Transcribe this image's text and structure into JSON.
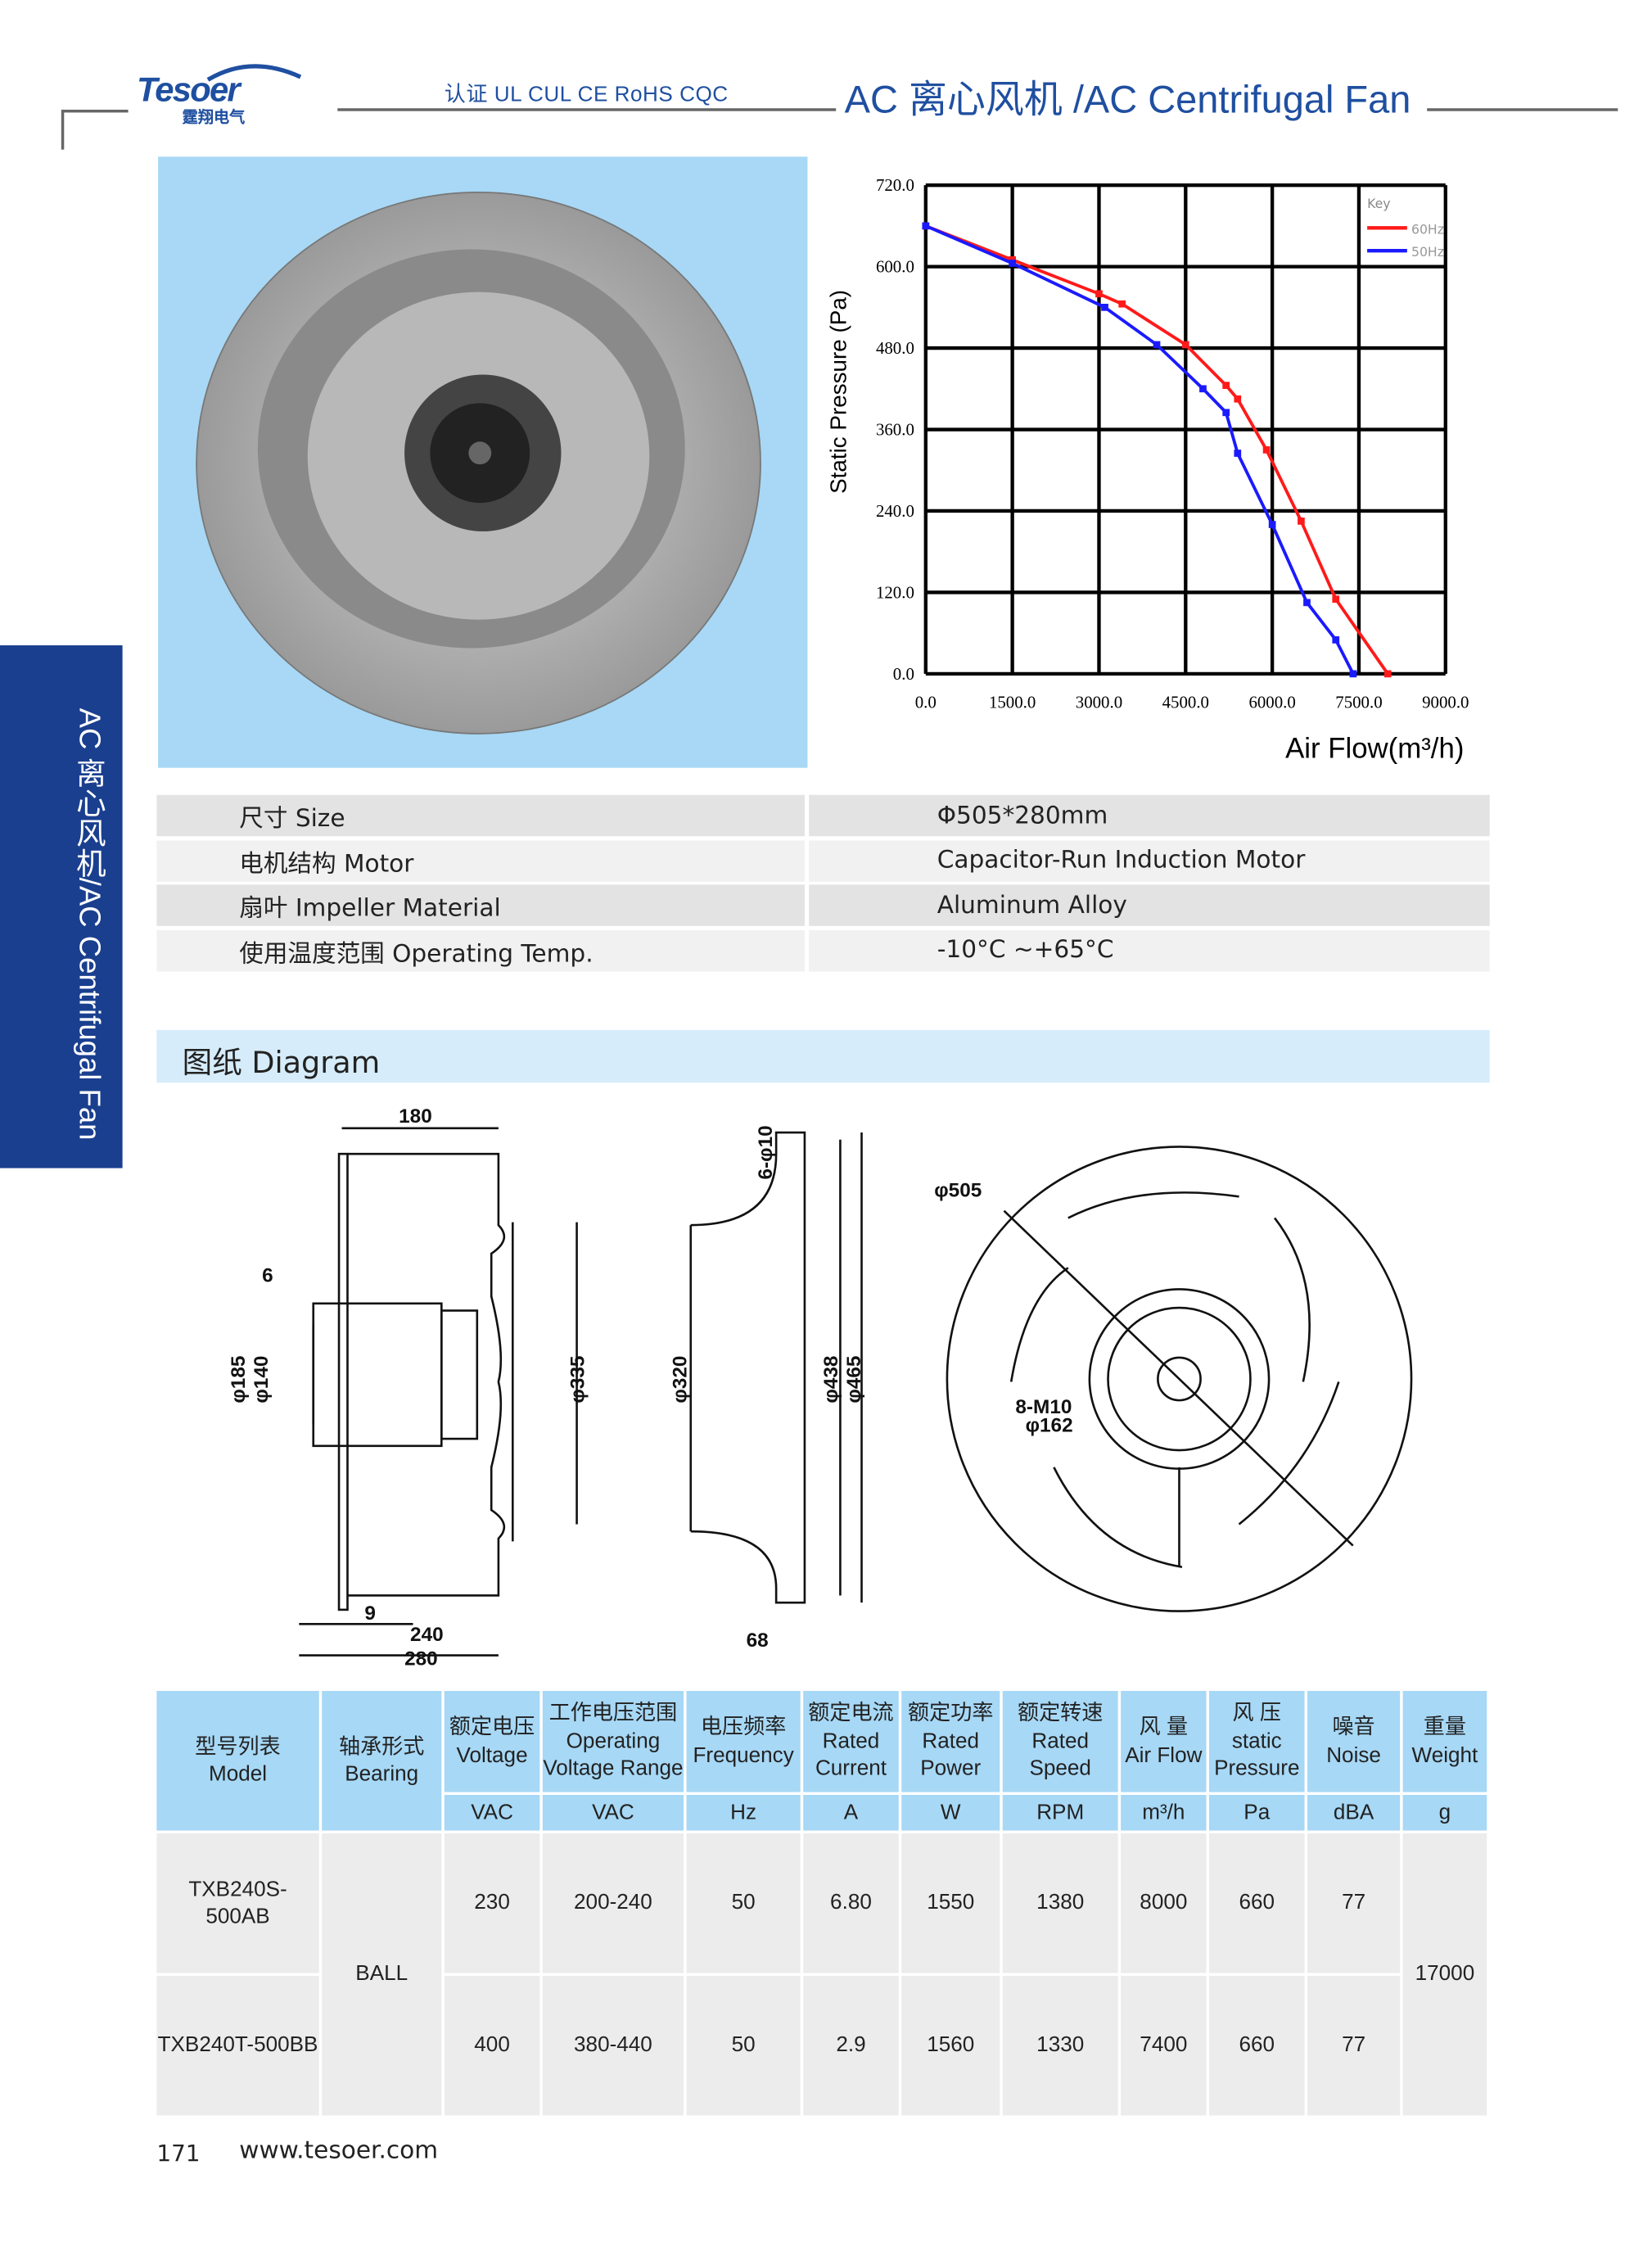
{
  "header": {
    "logo_text": "Tesoer",
    "logo_sub": "霆翔电气",
    "certifications": "认证 UL CUL CE RoHS   CQC",
    "title": "AC 离心风机 /AC Centrifugal Fan",
    "brand_color": "#1f4fa0"
  },
  "sidebar": {
    "text": "AC 离心风机/AC Centrifugal Fan",
    "color": "#1a3f8f"
  },
  "chart_data": {
    "type": "line",
    "xlabel": "Air Flow(m³/h)",
    "ylabel": "Static Pressure (Pa)",
    "xlim": [
      0,
      9000
    ],
    "ylim": [
      0,
      720
    ],
    "xticks": [
      "0.0",
      "1500.0",
      "3000.0",
      "4500.0",
      "6000.0",
      "7500.0",
      "9000.0"
    ],
    "yticks": [
      "0.0",
      "120.0",
      "240.0",
      "360.0",
      "480.0",
      "600.0",
      "720.0"
    ],
    "grid": true,
    "legend": {
      "title": "Key",
      "placement": "top-right"
    },
    "series": [
      {
        "name": "60Hz",
        "color": "#ff1a1a",
        "x": [
          0,
          1500,
          3000,
          3400,
          4500,
          5200,
          5400,
          5900,
          6500,
          7100,
          8000
        ],
        "y": [
          660,
          610,
          560,
          545,
          485,
          425,
          405,
          330,
          225,
          110,
          0
        ]
      },
      {
        "name": "50Hz",
        "color": "#1a1aff",
        "x": [
          0,
          1500,
          3100,
          4000,
          4800,
          5200,
          5400,
          6000,
          6600,
          7100,
          7400
        ],
        "y": [
          660,
          605,
          540,
          485,
          420,
          385,
          325,
          220,
          105,
          50,
          0
        ]
      }
    ]
  },
  "specs": [
    {
      "label": "尺寸 Size",
      "value": "Φ505*280mm"
    },
    {
      "label": "电机结构 Motor",
      "value": "Capacitor-Run Induction Motor"
    },
    {
      "label": "扇叶 Impeller  Material",
      "value": "Aluminum Alloy"
    },
    {
      "label": "使用温度范围 Operating Temp.",
      "value": "-10°C ~+65°C"
    }
  ],
  "diagram": {
    "heading": "图纸 Diagram",
    "labels": {
      "d180": "180",
      "d6": "6",
      "d185": "φ185",
      "d140": "φ140",
      "d335": "φ335",
      "d9": "9",
      "d240": "240",
      "d280": "280",
      "d6p10": "6-φ10",
      "d320": "φ320",
      "d438": "φ438",
      "d465": "φ465",
      "d68": "68",
      "d505": "φ505",
      "d8m10": "8-M10",
      "d162": "φ162"
    }
  },
  "table": {
    "headers": [
      {
        "cn": "型号列表",
        "en": "Model"
      },
      {
        "cn": "轴承形式",
        "en": "Bearing"
      },
      {
        "cn": "额定电压",
        "en": "Voltage",
        "unit": "VAC"
      },
      {
        "cn": "工作电压范围",
        "en": "Operating Voltage Range",
        "unit": "VAC"
      },
      {
        "cn": "电压频率",
        "en": "Frequency",
        "unit": "Hz"
      },
      {
        "cn": "额定电流",
        "en": "Rated Current",
        "unit": "A"
      },
      {
        "cn": "额定功率",
        "en": "Rated Power",
        "unit": "W"
      },
      {
        "cn": "额定转速",
        "en": "Rated Speed",
        "unit": "RPM"
      },
      {
        "cn": "风 量",
        "en": "Air Flow",
        "unit": "m³/h"
      },
      {
        "cn": "风 压",
        "en": "static Pressure",
        "unit": "Pa"
      },
      {
        "cn": "噪音",
        "en": "Noise",
        "unit": "dBA"
      },
      {
        "cn": "重量",
        "en": "Weight",
        "unit": "g"
      }
    ],
    "bearing": "BALL",
    "weight": "17000",
    "rows": [
      {
        "model": "TXB240S-500AB",
        "voltage": "230",
        "range": "200-240",
        "freq": "50",
        "current": "6.80",
        "power": "1550",
        "speed": "1380",
        "flow": "8000",
        "pressure": "660",
        "noise": "77"
      },
      {
        "model": "TXB240T-500BB",
        "voltage": "400",
        "range": "380-440",
        "freq": "50",
        "current": "2.9",
        "power": "1560",
        "speed": "1330",
        "flow": "7400",
        "pressure": "660",
        "noise": "77"
      }
    ]
  },
  "footer": {
    "page": "171",
    "url": "www.tesoer.com"
  }
}
